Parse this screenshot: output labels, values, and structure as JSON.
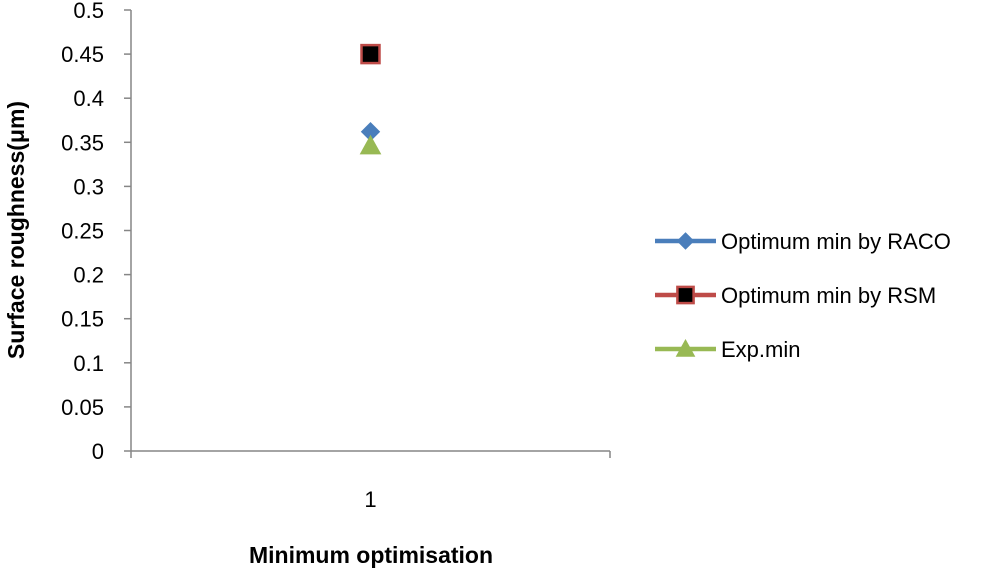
{
  "chart_data": {
    "type": "scatter",
    "title": "",
    "xlabel": "Minimum optimisation",
    "ylabel": "Surface roughness(μm)",
    "x_categories": [
      "1"
    ],
    "ylim": [
      0,
      0.5
    ],
    "y_ticks": [
      0,
      0.05,
      0.1,
      0.15,
      0.2,
      0.25,
      0.3,
      0.35,
      0.4,
      0.45,
      0.5
    ],
    "grid": false,
    "legend_position": "right",
    "series": [
      {
        "name": "Optimum min by RACO",
        "x": "1",
        "value": 0.362,
        "marker": "diamond",
        "color": "#4a7ebb"
      },
      {
        "name": "Optimum min by RSM",
        "x": "1",
        "value": 0.45,
        "marker": "square",
        "color": "#000000",
        "edge_color": "#be4b48"
      },
      {
        "name": "Exp.min",
        "x": "1",
        "value": 0.346,
        "marker": "triangle",
        "color": "#98b954"
      }
    ]
  }
}
